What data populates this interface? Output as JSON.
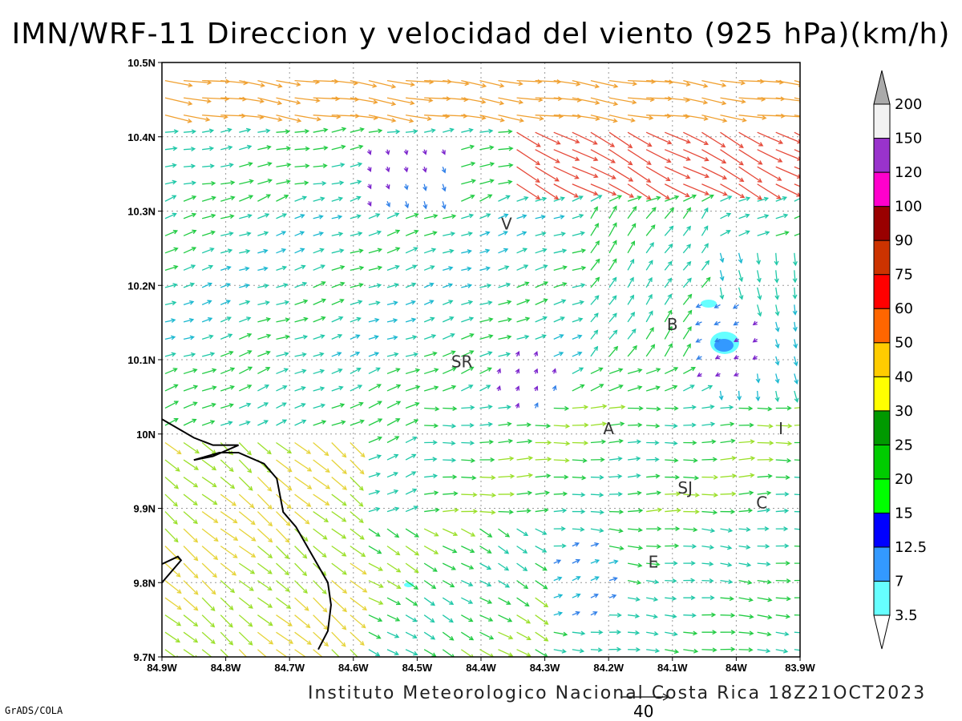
{
  "title": "IMN/WRF-11 Direccion y velocidad del viento (925 hPa)(km/h)",
  "footer": "Instituto Meteorologico Nacional Costa Rica 18Z21OCT2023",
  "credit": "GrADS/COLA",
  "reference_vector": {
    "label": "40",
    "speed": 40
  },
  "map": {
    "lon_range": [
      -84.9,
      -83.9
    ],
    "lat_range": [
      9.7,
      10.5
    ],
    "lon_ticks": [
      "84.9W",
      "84.8W",
      "84.7W",
      "84.6W",
      "84.5W",
      "84.4W",
      "84.3W",
      "84.2W",
      "84.1W",
      "84W",
      "83.9W"
    ],
    "lat_ticks": [
      "9.7N",
      "9.8N",
      "9.9N",
      "10N",
      "10.1N",
      "10.2N",
      "10.3N",
      "10.4N",
      "10.5N"
    ],
    "grid": true,
    "places": [
      {
        "label": "V",
        "lon": -84.36,
        "lat": 10.275
      },
      {
        "label": "SR",
        "lon": -84.43,
        "lat": 10.09
      },
      {
        "label": "B",
        "lon": -84.1,
        "lat": 10.14
      },
      {
        "label": "A",
        "lon": -84.2,
        "lat": 10.0
      },
      {
        "label": "I",
        "lon": -83.93,
        "lat": 10.0
      },
      {
        "label": "SJ",
        "lon": -84.08,
        "lat": 9.92
      },
      {
        "label": "C",
        "lon": -83.96,
        "lat": 9.9
      },
      {
        "label": "E",
        "lon": -84.13,
        "lat": 9.82
      }
    ],
    "coastline_lonlat": [
      [
        -84.9,
        10.02
      ],
      [
        -84.85,
        9.995
      ],
      [
        -84.82,
        9.985
      ],
      [
        -84.78,
        9.985
      ],
      [
        -84.82,
        9.97
      ],
      [
        -84.85,
        9.965
      ],
      [
        -84.81,
        9.975
      ],
      [
        -84.78,
        9.975
      ],
      [
        -84.74,
        9.96
      ],
      [
        -84.72,
        9.94
      ],
      [
        -84.71,
        9.895
      ],
      [
        -84.69,
        9.875
      ],
      [
        -84.66,
        9.83
      ],
      [
        -84.64,
        9.8
      ],
      [
        -84.635,
        9.77
      ],
      [
        -84.64,
        9.735
      ],
      [
        -84.655,
        9.71
      ]
    ],
    "coastline2_lonlat": [
      [
        -84.9,
        9.825
      ],
      [
        -84.875,
        9.835
      ],
      [
        -84.87,
        9.83
      ],
      [
        -84.9,
        9.8
      ]
    ]
  },
  "colorbar": {
    "levels": [
      "3.5",
      "7",
      "12.5",
      "15",
      "20",
      "25",
      "30",
      "40",
      "50",
      "60",
      "75",
      "90",
      "100",
      "120",
      "150",
      "200"
    ],
    "colors": [
      "#66ffff",
      "#3399ff",
      "#0000ff",
      "#00ff00",
      "#00cc00",
      "#009900",
      "#ffff00",
      "#ffcc00",
      "#ff6600",
      "#ff0000",
      "#cc3300",
      "#990000",
      "#ff00cc",
      "#9933cc",
      "#f2f2f2",
      "#aaaaaa"
    ]
  },
  "wind_colors": {
    "weak": "#2f7fe8",
    "cyan": "#1ab8d0",
    "teal": "#1fc8a8",
    "green": "#22cc44",
    "lime": "#9be02a",
    "yellow": "#e6d43a",
    "orange": "#f0a030",
    "red": "#e64a3a",
    "purple": "#7a22cc"
  }
}
